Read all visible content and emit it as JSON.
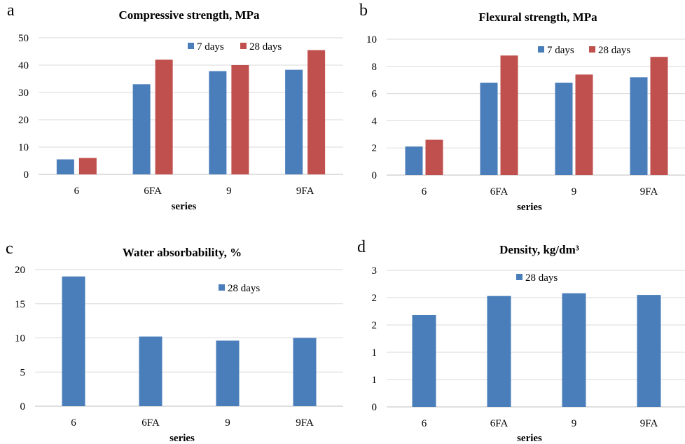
{
  "chart_data": [
    {
      "panel": "a",
      "type": "bar",
      "title": "Compressive strength, MPa",
      "xlabel": "series",
      "categories": [
        "6",
        "6FA",
        "9",
        "9FA"
      ],
      "series": [
        {
          "name": "7 days",
          "values": [
            5.5,
            33,
            37.8,
            38.3
          ],
          "color": "#4a7ebb"
        },
        {
          "name": "28 days",
          "values": [
            6,
            42,
            40,
            45.5
          ],
          "color": "#c0504d"
        }
      ],
      "ylim": [
        0,
        50
      ],
      "yticks": [
        "0",
        "10",
        "20",
        "30",
        "40",
        "50"
      ],
      "grid": true,
      "legend": "top-right"
    },
    {
      "panel": "b",
      "type": "bar",
      "title": "Flexural strength, MPa",
      "xlabel": "series",
      "categories": [
        "6",
        "6FA",
        "9",
        "9FA"
      ],
      "series": [
        {
          "name": "7 days",
          "values": [
            2.1,
            6.8,
            6.8,
            7.2
          ],
          "color": "#4a7ebb"
        },
        {
          "name": "28 days",
          "values": [
            2.6,
            8.8,
            7.4,
            8.7
          ],
          "color": "#c0504d"
        }
      ],
      "ylim": [
        0,
        10
      ],
      "yticks": [
        "0",
        "2",
        "4",
        "6",
        "8",
        "10"
      ],
      "grid": true,
      "legend": "top-right"
    },
    {
      "panel": "c",
      "type": "bar",
      "title": "Water  absorbability,  %",
      "xlabel": "series",
      "categories": [
        "6",
        "6FA",
        "9",
        "9FA"
      ],
      "series": [
        {
          "name": "28 days",
          "values": [
            19,
            10.2,
            9.6,
            10
          ],
          "color": "#4a7ebb"
        }
      ],
      "ylim": [
        0,
        20
      ],
      "yticks": [
        "0",
        "5",
        "10",
        "15",
        "20"
      ],
      "grid": true,
      "legend": "top-right"
    },
    {
      "panel": "d",
      "type": "bar",
      "title": "Density, kg/dm³",
      "xlabel": "series",
      "categories": [
        "6",
        "6FA",
        "9",
        "9FA"
      ],
      "series": [
        {
          "name": "28 days",
          "values": [
            1.68,
            2.03,
            2.08,
            2.05
          ],
          "color": "#4a7ebb"
        }
      ],
      "ylim": [
        0,
        2.5
      ],
      "yticks": [
        "0",
        "1",
        "1",
        "2",
        "2",
        "3"
      ],
      "grid": true,
      "legend": "top-center"
    }
  ]
}
